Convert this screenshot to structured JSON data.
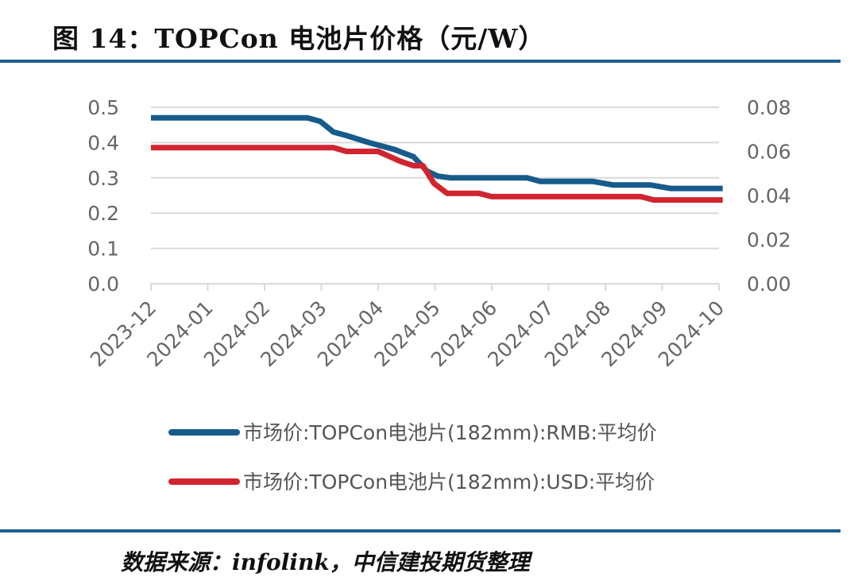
{
  "figure": {
    "title": "图 14：TOPCon 电池片价格（元/W）",
    "source": "数据来源：infolink，中信建投期货整理",
    "rule_color": "#1f5f8f"
  },
  "chart_data": {
    "type": "line",
    "title": "图 14：TOPCon 电池片价格（元/W）",
    "x_ticks": [
      "2023-12",
      "2024-01",
      "2024-02",
      "2024-03",
      "2024-04",
      "2024-05",
      "2024-06",
      "2024-07",
      "2024-08",
      "2024-09",
      "2024-10"
    ],
    "y_left": {
      "range": [
        0,
        0.5
      ],
      "ticks": [
        "0.0",
        "0.1",
        "0.2",
        "0.3",
        "0.4",
        "0.5"
      ]
    },
    "y_right": {
      "range": [
        0,
        0.08
      ],
      "ticks": [
        "0.00",
        "0.02",
        "0.04",
        "0.06",
        "0.08"
      ]
    },
    "grid": "horizontal",
    "legend_position": "bottom",
    "series": [
      {
        "name": "市场价:TOPCon电池片(182mm):RMB:平均价",
        "axis": "left",
        "color": "#175b8c",
        "points": [
          [
            "2023-12-01",
            0.47
          ],
          [
            "2024-02-23",
            0.47
          ],
          [
            "2024-03-01",
            0.46
          ],
          [
            "2024-03-08",
            0.43
          ],
          [
            "2024-03-15",
            0.42
          ],
          [
            "2024-03-27",
            0.4
          ],
          [
            "2024-04-10",
            0.38
          ],
          [
            "2024-04-20",
            0.36
          ],
          [
            "2024-04-27",
            0.32
          ],
          [
            "2024-05-03",
            0.305
          ],
          [
            "2024-05-10",
            0.3
          ],
          [
            "2024-06-20",
            0.3
          ],
          [
            "2024-06-27",
            0.29
          ],
          [
            "2024-07-25",
            0.29
          ],
          [
            "2024-08-05",
            0.28
          ],
          [
            "2024-08-25",
            0.28
          ],
          [
            "2024-09-05",
            0.27
          ],
          [
            "2024-10-03",
            0.27
          ]
        ]
      },
      {
        "name": "市场价:TOPCon电池片(182mm):USD:平均价",
        "axis": "right",
        "color": "#d0252f",
        "points": [
          [
            "2023-12-01",
            0.0617
          ],
          [
            "2024-03-08",
            0.0617
          ],
          [
            "2024-03-15",
            0.06
          ],
          [
            "2024-04-01",
            0.06
          ],
          [
            "2024-04-13",
            0.0555
          ],
          [
            "2024-04-20",
            0.0535
          ],
          [
            "2024-04-25",
            0.0535
          ],
          [
            "2024-05-01",
            0.0455
          ],
          [
            "2024-05-08",
            0.041
          ],
          [
            "2024-05-25",
            0.041
          ],
          [
            "2024-06-01",
            0.0395
          ],
          [
            "2024-08-20",
            0.0395
          ],
          [
            "2024-08-27",
            0.038
          ],
          [
            "2024-10-03",
            0.038
          ]
        ]
      }
    ]
  }
}
